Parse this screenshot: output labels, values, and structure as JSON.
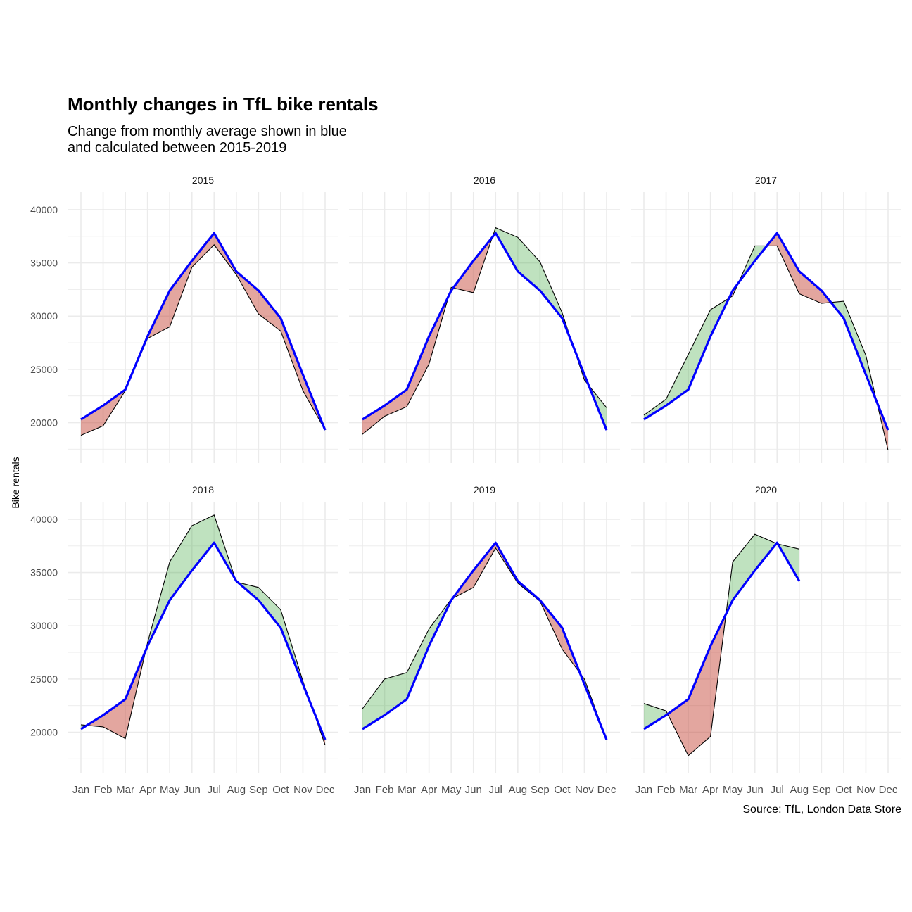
{
  "chart_data": {
    "type": "area",
    "title": "Monthly changes in TfL bike rentals",
    "subtitle_lines": [
      "Change from monthly average shown in blue",
      "and calculated between 2015-2019"
    ],
    "caption": "Source: TfL, London Data Store",
    "ylabel": "Bike rentals",
    "xlabel": "",
    "ylim": [
      16200,
      41650
    ],
    "yticks": [
      20000,
      25000,
      30000,
      35000,
      40000
    ],
    "ytick_labels": [
      "20000",
      "25000",
      "30000",
      "35000",
      "40000"
    ],
    "categories": [
      "Jan",
      "Feb",
      "Mar",
      "Apr",
      "May",
      "Jun",
      "Jul",
      "Aug",
      "Sep",
      "Oct",
      "Nov",
      "Dec"
    ],
    "grid": true,
    "colors": {
      "average": "#0000ff",
      "actual": "#000000",
      "above": "#2ca02c",
      "below": "#c0392b",
      "grid": "#ebebeb"
    },
    "average": [
      20300,
      21600,
      23100,
      28100,
      32400,
      35200,
      37800,
      34200,
      32400,
      29800,
      24500,
      19300
    ],
    "panels": [
      {
        "name": "2015",
        "actual": [
          18800,
          19700,
          23000,
          27900,
          29000,
          34600,
          36700,
          33900,
          30200,
          28600,
          23000,
          19300
        ]
      },
      {
        "name": "2016",
        "actual": [
          18900,
          20600,
          21500,
          25500,
          32700,
          32200,
          38300,
          37400,
          35100,
          30300,
          24000,
          21400
        ]
      },
      {
        "name": "2017",
        "actual": [
          20700,
          22200,
          26400,
          30600,
          31900,
          36600,
          36600,
          32100,
          31200,
          31400,
          26300,
          17400
        ]
      },
      {
        "name": "2018",
        "actual": [
          20700,
          20500,
          19400,
          28400,
          36000,
          39400,
          40400,
          34100,
          33600,
          31500,
          24800,
          18800
        ]
      },
      {
        "name": "2019",
        "actual": [
          22200,
          25000,
          25600,
          29700,
          32500,
          33600,
          37300,
          34000,
          32300,
          27800,
          25000,
          19300
        ]
      },
      {
        "name": "2020",
        "actual": [
          22700,
          22000,
          17800,
          19600,
          36000,
          38600,
          37700,
          37200
        ]
      }
    ]
  }
}
